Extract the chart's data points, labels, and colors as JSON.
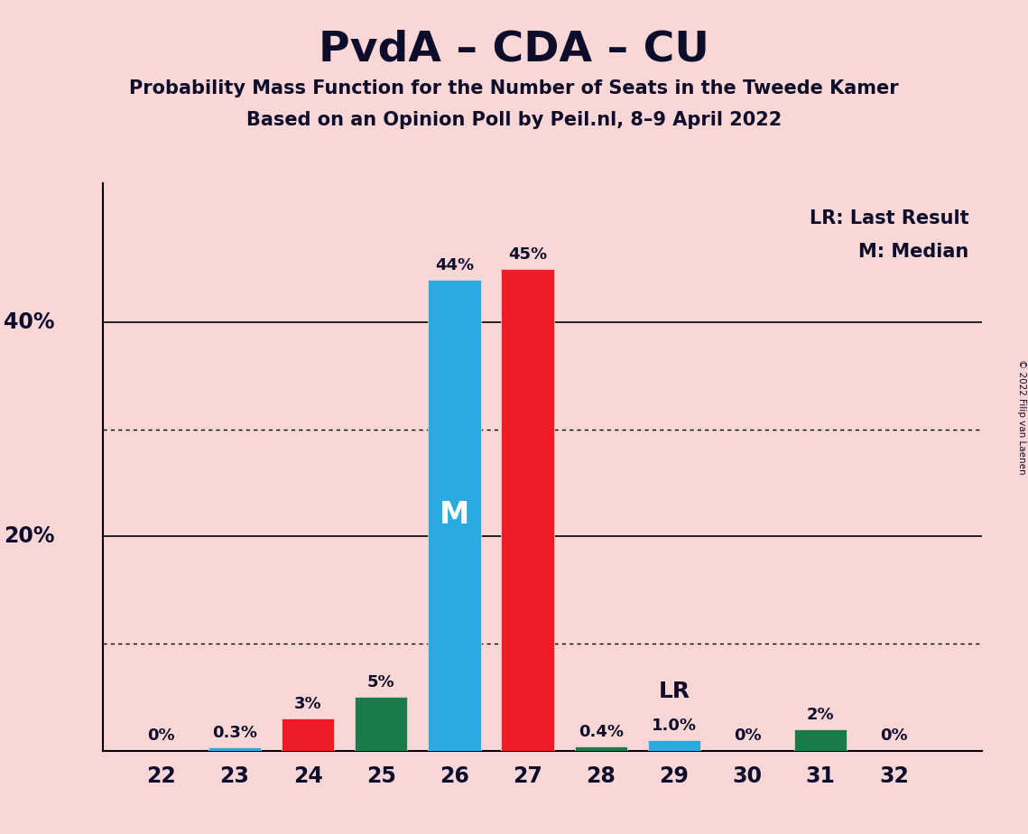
{
  "title": "PvdA – CDA – CU",
  "subtitle1": "Probability Mass Function for the Number of Seats in the Tweede Kamer",
  "subtitle2": "Based on an Opinion Poll by Peil.nl, 8–9 April 2022",
  "copyright": "© 2022 Filip van Laenen",
  "legend_lr": "LR: Last Result",
  "legend_m": "M: Median",
  "seats": [
    22,
    23,
    24,
    25,
    26,
    27,
    28,
    29,
    30,
    31,
    32
  ],
  "values": [
    0.0,
    0.3,
    3.0,
    5.0,
    44.0,
    45.0,
    0.4,
    1.0,
    0.0,
    2.0,
    0.0
  ],
  "labels": [
    "0%",
    "0.3%",
    "3%",
    "5%",
    "44%",
    "45%",
    "0.4%",
    "1.0%",
    "0%",
    "2%",
    "0%"
  ],
  "colors": [
    "#EF1C27",
    "#29ABE2",
    "#EF1C27",
    "#1A7A4A",
    "#29ABE2",
    "#EF1C27",
    "#1A7A4A",
    "#29ABE2",
    "#EF1C27",
    "#1A7A4A",
    "#29ABE2"
  ],
  "median_seat": 26,
  "lr_seat": 29,
  "background_color": "#FAD7D7",
  "ylim": [
    0,
    53
  ],
  "solid_gridlines": [
    0,
    20,
    40
  ],
  "dotted_gridlines": [
    10,
    30
  ]
}
